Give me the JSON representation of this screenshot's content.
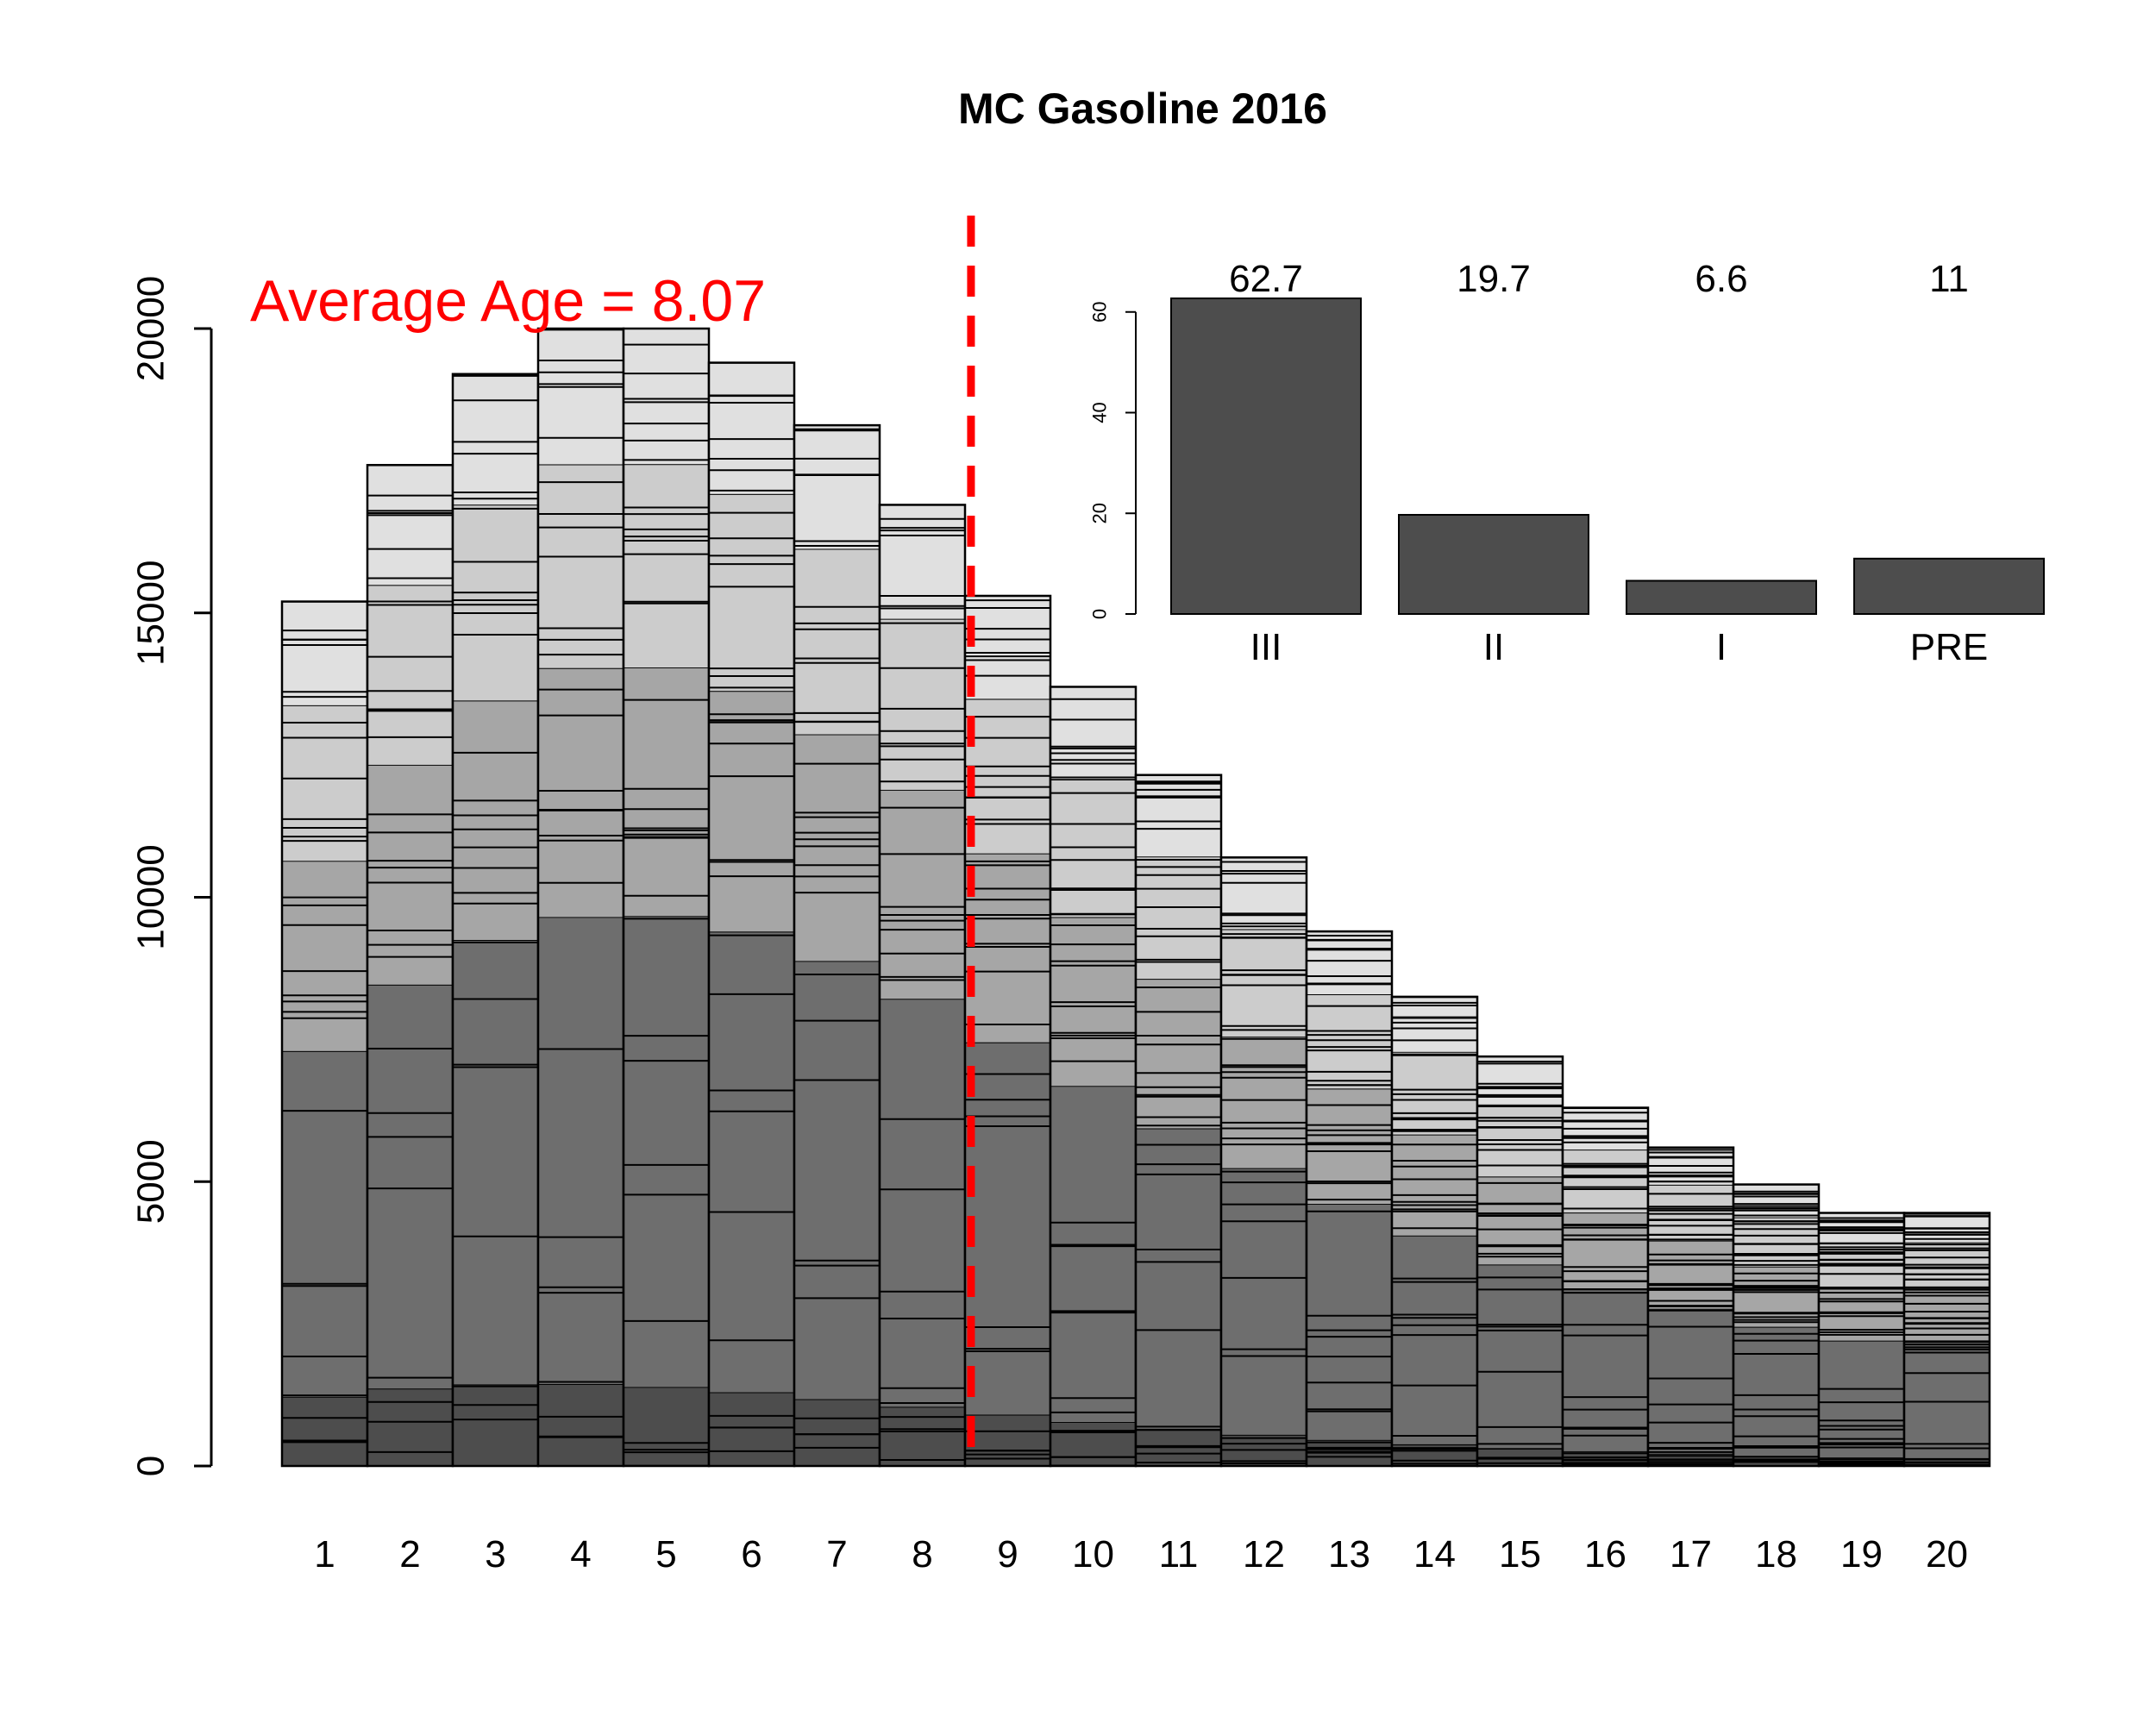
{
  "chart_data": [
    {
      "type": "bar",
      "stacked": true,
      "title": "MC Gasoline 2016",
      "xlabel": "",
      "ylabel": "",
      "categories": [
        "1",
        "2",
        "3",
        "4",
        "5",
        "6",
        "7",
        "8",
        "9",
        "10",
        "11",
        "12",
        "13",
        "14",
        "15",
        "16",
        "17",
        "18",
        "19",
        "20"
      ],
      "values": [
        15200,
        17600,
        19200,
        20000,
        20000,
        19400,
        18300,
        16900,
        15300,
        13700,
        12150,
        10700,
        9400,
        8250,
        7200,
        6300,
        5600,
        4950,
        4450,
        4450
      ],
      "ylim": [
        0,
        20000
      ],
      "yticks": [
        0,
        5000,
        10000,
        15000,
        20000
      ],
      "annotation": {
        "text": "Average Age = 8.07",
        "value": 8.07,
        "line_style": "dashed",
        "color": "#ff0000"
      },
      "grid": false,
      "legend": "none",
      "segment_colors": [
        "#4d4d4d",
        "#6e6e6e",
        "#a6a6a6",
        "#cccccc",
        "#e0e0e0"
      ]
    },
    {
      "type": "bar",
      "categories": [
        "III",
        "II",
        "I",
        "PRE"
      ],
      "values": [
        62.7,
        19.7,
        6.6,
        11
      ],
      "value_labels": [
        "62.7",
        "19.7",
        "6.6",
        "11"
      ],
      "ylim": [
        0,
        62.7
      ],
      "yticks": [
        0,
        20,
        40,
        60
      ],
      "bar_color": "#4d4d4d",
      "position": "top-right inset",
      "grid": false
    }
  ]
}
